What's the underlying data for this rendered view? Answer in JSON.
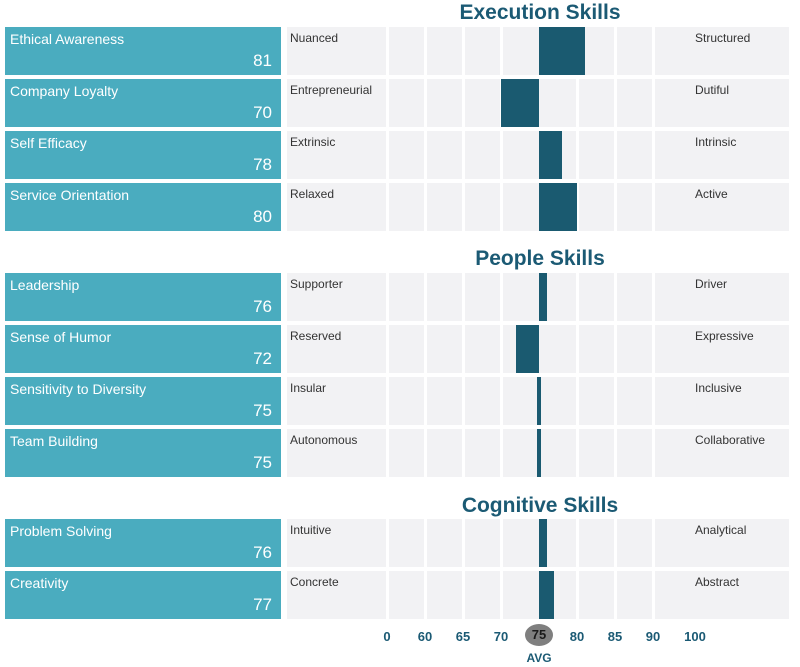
{
  "chart_data": {
    "type": "bar",
    "axis_ticks": [
      "0",
      "60",
      "65",
      "70",
      "75",
      "80",
      "85",
      "90",
      "100"
    ],
    "avg_value": "75",
    "avg_label": "AVG",
    "sections": [
      {
        "title": "Execution Skills",
        "skills": [
          {
            "name": "Ethical Awareness",
            "score": 81,
            "left": "Nuanced",
            "right": "Structured"
          },
          {
            "name": "Company Loyalty",
            "score": 70,
            "left": "Entrepreneurial",
            "right": "Dutiful"
          },
          {
            "name": "Self Efficacy",
            "score": 78,
            "left": "Extrinsic",
            "right": "Intrinsic"
          },
          {
            "name": "Service Orientation",
            "score": 80,
            "left": "Relaxed",
            "right": "Active"
          }
        ]
      },
      {
        "title": "People Skills",
        "skills": [
          {
            "name": "Leadership",
            "score": 76,
            "left": "Supporter",
            "right": "Driver"
          },
          {
            "name": "Sense of Humor",
            "score": 72,
            "left": "Reserved",
            "right": "Expressive"
          },
          {
            "name": "Sensitivity to Diversity",
            "score": 75,
            "left": "Insular",
            "right": "Inclusive"
          },
          {
            "name": "Team Building",
            "score": 75,
            "left": "Autonomous",
            "right": "Collaborative"
          }
        ]
      },
      {
        "title": "Cognitive Skills",
        "skills": [
          {
            "name": "Problem Solving",
            "score": 76,
            "left": "Intuitive",
            "right": "Analytical"
          },
          {
            "name": "Creativity",
            "score": 77,
            "left": "Concrete",
            "right": "Abstract"
          }
        ]
      }
    ]
  }
}
